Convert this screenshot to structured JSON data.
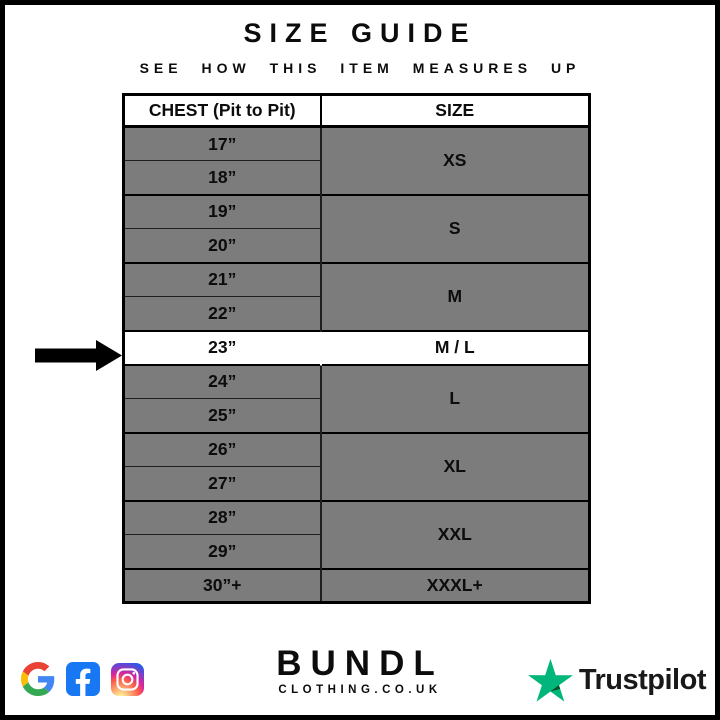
{
  "page": {
    "title": "SIZE GUIDE",
    "subtitle": "SEE HOW THIS ITEM MEASURES UP"
  },
  "chart_data": {
    "type": "table",
    "title": "SIZE GUIDE",
    "subtitle": "SEE HOW THIS ITEM MEASURES UP",
    "columns": [
      "CHEST (Pit to Pit)",
      "SIZE"
    ],
    "rows": [
      {
        "chest": "17”",
        "size": "XS"
      },
      {
        "chest": "18”",
        "size": "XS"
      },
      {
        "chest": "19”",
        "size": "S"
      },
      {
        "chest": "20”",
        "size": "S"
      },
      {
        "chest": "21”",
        "size": "M"
      },
      {
        "chest": "22”",
        "size": "M"
      },
      {
        "chest": "23”",
        "size": "M / L",
        "highlighted": true
      },
      {
        "chest": "24”",
        "size": "L"
      },
      {
        "chest": "25”",
        "size": "L"
      },
      {
        "chest": "26”",
        "size": "XL"
      },
      {
        "chest": "27”",
        "size": "XL"
      },
      {
        "chest": "28”",
        "size": "XXL"
      },
      {
        "chest": "29”",
        "size": "XXL"
      },
      {
        "chest": "30”+",
        "size": "XXXL+"
      }
    ]
  },
  "table": {
    "headers": {
      "chest": "CHEST (Pit to Pit)",
      "size": "SIZE"
    },
    "groups": [
      {
        "chest": [
          "17”",
          "18”"
        ],
        "size": "XS",
        "highlight": false
      },
      {
        "chest": [
          "19”",
          "20”"
        ],
        "size": "S",
        "highlight": false
      },
      {
        "chest": [
          "21”",
          "22”"
        ],
        "size": "M",
        "highlight": false
      },
      {
        "chest": [
          "23”"
        ],
        "size": "M / L",
        "highlight": true
      },
      {
        "chest": [
          "24”",
          "25”"
        ],
        "size": "L",
        "highlight": false
      },
      {
        "chest": [
          "26”",
          "27”"
        ],
        "size": "XL",
        "highlight": false
      },
      {
        "chest": [
          "28”",
          "29”"
        ],
        "size": "XXL",
        "highlight": false
      },
      {
        "chest": [
          "30”+"
        ],
        "size": "XXXL+",
        "highlight": false
      }
    ],
    "row_gray": "#7c7c7c",
    "highlight_bg": "#ffffff"
  },
  "footer": {
    "brand": {
      "name": "BUNDL",
      "domain": "CLOTHING.CO.UK"
    },
    "social_icons": [
      "google",
      "facebook",
      "instagram"
    ],
    "facebook_blue": "#1877F2",
    "google_colors": {
      "red": "#EA4335",
      "blue": "#4285F4",
      "yellow": "#FBBC05",
      "green": "#34A853"
    },
    "trustpilot": {
      "label": "Trustpilot",
      "star_green": "#00B67A",
      "star_dark": "#005128"
    }
  }
}
